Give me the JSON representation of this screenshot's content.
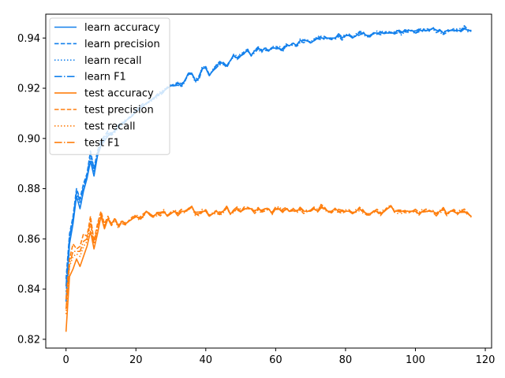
{
  "chart_data": {
    "type": "line",
    "title": "",
    "xlabel": "",
    "ylabel": "",
    "xlim": [
      -5.8,
      121.8
    ],
    "ylim": [
      0.8165,
      0.9495
    ],
    "xticks": [
      0,
      20,
      40,
      60,
      80,
      100,
      120
    ],
    "yticks": [
      0.82,
      0.84,
      0.86,
      0.88,
      0.9,
      0.92,
      0.94
    ],
    "ytick_labels": [
      "0.82",
      "0.84",
      "0.86",
      "0.88",
      "0.90",
      "0.92",
      "0.94"
    ],
    "grid": false,
    "legend_position": "upper-left",
    "colors": {
      "learn": "#1380ec",
      "test": "#ff7f0e"
    },
    "learn_accuracy": [
      [
        0,
        0.835
      ],
      [
        1,
        0.858
      ],
      [
        2,
        0.866
      ],
      [
        3,
        0.877
      ],
      [
        4,
        0.872
      ],
      [
        5,
        0.879
      ],
      [
        6,
        0.884
      ],
      [
        7,
        0.891
      ],
      [
        8,
        0.885
      ],
      [
        9,
        0.893
      ],
      [
        10,
        0.897
      ],
      [
        11,
        0.899
      ],
      [
        12,
        0.901
      ],
      [
        13,
        0.902
      ],
      [
        14,
        0.903
      ],
      [
        15,
        0.905
      ],
      [
        16,
        0.906
      ],
      [
        17,
        0.907
      ],
      [
        18,
        0.908
      ],
      [
        19,
        0.909
      ],
      [
        20,
        0.911
      ],
      [
        21,
        0.912
      ],
      [
        22,
        0.913
      ],
      [
        23,
        0.914
      ],
      [
        24,
        0.915
      ],
      [
        25,
        0.916
      ],
      [
        26,
        0.917
      ],
      [
        27,
        0.918
      ],
      [
        28,
        0.919
      ],
      [
        29,
        0.92
      ],
      [
        30,
        0.921
      ],
      [
        31,
        0.921
      ],
      [
        32,
        0.922
      ],
      [
        33,
        0.921
      ],
      [
        34,
        0.923
      ],
      [
        35,
        0.926
      ],
      [
        36,
        0.926
      ],
      [
        37,
        0.923
      ],
      [
        38,
        0.924
      ],
      [
        39,
        0.928
      ],
      [
        40,
        0.928
      ],
      [
        41,
        0.925
      ],
      [
        42,
        0.927
      ],
      [
        43,
        0.929
      ],
      [
        44,
        0.93
      ],
      [
        45,
        0.93
      ],
      [
        46,
        0.929
      ],
      [
        47,
        0.931
      ],
      [
        48,
        0.933
      ],
      [
        49,
        0.932
      ],
      [
        50,
        0.933
      ],
      [
        51,
        0.934
      ],
      [
        52,
        0.935
      ],
      [
        53,
        0.933
      ],
      [
        54,
        0.935
      ],
      [
        55,
        0.936
      ],
      [
        56,
        0.935
      ],
      [
        57,
        0.936
      ],
      [
        58,
        0.935
      ],
      [
        59,
        0.936
      ],
      [
        60,
        0.936
      ],
      [
        61,
        0.936
      ],
      [
        62,
        0.935
      ],
      [
        63,
        0.937
      ],
      [
        64,
        0.937
      ],
      [
        65,
        0.938
      ],
      [
        66,
        0.937
      ],
      [
        67,
        0.939
      ],
      [
        68,
        0.939
      ],
      [
        69,
        0.939
      ],
      [
        70,
        0.938
      ],
      [
        71,
        0.939
      ],
      [
        72,
        0.94
      ],
      [
        73,
        0.94
      ],
      [
        74,
        0.94
      ],
      [
        75,
        0.94
      ],
      [
        76,
        0.94
      ],
      [
        77,
        0.94
      ],
      [
        78,
        0.941
      ],
      [
        79,
        0.94
      ],
      [
        80,
        0.941
      ],
      [
        81,
        0.941
      ],
      [
        82,
        0.94
      ],
      [
        83,
        0.941
      ],
      [
        84,
        0.942
      ],
      [
        85,
        0.942
      ],
      [
        86,
        0.941
      ],
      [
        87,
        0.941
      ],
      [
        88,
        0.942
      ],
      [
        89,
        0.942
      ],
      [
        90,
        0.942
      ],
      [
        91,
        0.942
      ],
      [
        92,
        0.942
      ],
      [
        93,
        0.942
      ],
      [
        94,
        0.942
      ],
      [
        95,
        0.943
      ],
      [
        96,
        0.942
      ],
      [
        97,
        0.943
      ],
      [
        98,
        0.943
      ],
      [
        99,
        0.943
      ],
      [
        100,
        0.942
      ],
      [
        101,
        0.943
      ],
      [
        102,
        0.943
      ],
      [
        103,
        0.943
      ],
      [
        104,
        0.943
      ],
      [
        105,
        0.944
      ],
      [
        106,
        0.943
      ],
      [
        107,
        0.943
      ],
      [
        108,
        0.942
      ],
      [
        109,
        0.943
      ],
      [
        110,
        0.943
      ],
      [
        111,
        0.943
      ],
      [
        112,
        0.943
      ],
      [
        113,
        0.943
      ],
      [
        114,
        0.944
      ],
      [
        115,
        0.943
      ],
      [
        116,
        0.943
      ]
    ],
    "test_accuracy": [
      [
        0,
        0.823
      ],
      [
        1,
        0.845
      ],
      [
        2,
        0.848
      ],
      [
        3,
        0.852
      ],
      [
        4,
        0.849
      ],
      [
        5,
        0.853
      ],
      [
        6,
        0.857
      ],
      [
        7,
        0.863
      ],
      [
        8,
        0.856
      ],
      [
        9,
        0.862
      ],
      [
        10,
        0.869
      ],
      [
        11,
        0.864
      ],
      [
        12,
        0.868
      ],
      [
        13,
        0.866
      ],
      [
        14,
        0.868
      ],
      [
        15,
        0.865
      ],
      [
        16,
        0.867
      ],
      [
        17,
        0.866
      ],
      [
        18,
        0.867
      ],
      [
        19,
        0.868
      ],
      [
        20,
        0.869
      ],
      [
        21,
        0.868
      ],
      [
        22,
        0.869
      ],
      [
        23,
        0.871
      ],
      [
        24,
        0.87
      ],
      [
        25,
        0.869
      ],
      [
        26,
        0.87
      ],
      [
        27,
        0.87
      ],
      [
        28,
        0.871
      ],
      [
        29,
        0.869
      ],
      [
        30,
        0.87
      ],
      [
        31,
        0.871
      ],
      [
        32,
        0.87
      ],
      [
        33,
        0.871
      ],
      [
        34,
        0.871
      ],
      [
        35,
        0.872
      ],
      [
        36,
        0.873
      ],
      [
        37,
        0.87
      ],
      [
        38,
        0.87
      ],
      [
        39,
        0.871
      ],
      [
        40,
        0.871
      ],
      [
        41,
        0.869
      ],
      [
        42,
        0.87
      ],
      [
        43,
        0.871
      ],
      [
        44,
        0.87
      ],
      [
        45,
        0.871
      ],
      [
        46,
        0.873
      ],
      [
        47,
        0.87
      ],
      [
        48,
        0.871
      ],
      [
        49,
        0.872
      ],
      [
        50,
        0.871
      ],
      [
        51,
        0.872
      ],
      [
        52,
        0.872
      ],
      [
        53,
        0.872
      ],
      [
        54,
        0.871
      ],
      [
        55,
        0.872
      ],
      [
        56,
        0.871
      ],
      [
        57,
        0.872
      ],
      [
        58,
        0.872
      ],
      [
        59,
        0.87
      ],
      [
        60,
        0.872
      ],
      [
        61,
        0.872
      ],
      [
        62,
        0.871
      ],
      [
        63,
        0.872
      ],
      [
        64,
        0.871
      ],
      [
        65,
        0.872
      ],
      [
        66,
        0.871
      ],
      [
        67,
        0.872
      ],
      [
        68,
        0.871
      ],
      [
        69,
        0.871
      ],
      [
        70,
        0.871
      ],
      [
        71,
        0.872
      ],
      [
        72,
        0.871
      ],
      [
        73,
        0.873
      ],
      [
        74,
        0.872
      ],
      [
        75,
        0.871
      ],
      [
        76,
        0.871
      ],
      [
        77,
        0.872
      ],
      [
        78,
        0.871
      ],
      [
        79,
        0.871
      ],
      [
        80,
        0.871
      ],
      [
        81,
        0.871
      ],
      [
        82,
        0.87
      ],
      [
        83,
        0.871
      ],
      [
        84,
        0.872
      ],
      [
        85,
        0.871
      ],
      [
        86,
        0.87
      ],
      [
        87,
        0.87
      ],
      [
        88,
        0.871
      ],
      [
        89,
        0.871
      ],
      [
        90,
        0.87
      ],
      [
        91,
        0.871
      ],
      [
        92,
        0.872
      ],
      [
        93,
        0.873
      ],
      [
        94,
        0.871
      ],
      [
        95,
        0.871
      ],
      [
        96,
        0.871
      ],
      [
        97,
        0.871
      ],
      [
        98,
        0.871
      ],
      [
        99,
        0.871
      ],
      [
        100,
        0.871
      ],
      [
        101,
        0.87
      ],
      [
        102,
        0.871
      ],
      [
        103,
        0.871
      ],
      [
        104,
        0.871
      ],
      [
        105,
        0.871
      ],
      [
        106,
        0.87
      ],
      [
        107,
        0.871
      ],
      [
        108,
        0.872
      ],
      [
        109,
        0.87
      ],
      [
        110,
        0.871
      ],
      [
        111,
        0.871
      ],
      [
        112,
        0.87
      ],
      [
        113,
        0.871
      ],
      [
        114,
        0.871
      ],
      [
        115,
        0.87
      ],
      [
        116,
        0.869
      ]
    ],
    "learn_precision_early": [
      [
        0,
        0.844
      ],
      [
        1,
        0.862
      ],
      [
        2,
        0.869
      ],
      [
        3,
        0.88
      ],
      [
        4,
        0.876
      ],
      [
        5,
        0.882
      ],
      [
        6,
        0.886
      ],
      [
        7,
        0.895
      ],
      [
        8,
        0.888
      ],
      [
        9,
        0.895
      ],
      [
        10,
        0.899
      ],
      [
        11,
        0.901
      ],
      [
        12,
        0.903
      ]
    ],
    "learn_recall_early": [
      [
        0,
        0.839
      ],
      [
        1,
        0.86
      ],
      [
        2,
        0.867
      ],
      [
        3,
        0.878
      ],
      [
        4,
        0.874
      ],
      [
        5,
        0.88
      ],
      [
        6,
        0.885
      ],
      [
        7,
        0.893
      ],
      [
        8,
        0.887
      ],
      [
        9,
        0.894
      ],
      [
        10,
        0.898
      ],
      [
        11,
        0.9
      ],
      [
        12,
        0.902
      ]
    ],
    "learn_f1_early": [
      [
        0,
        0.841
      ],
      [
        1,
        0.861
      ],
      [
        2,
        0.868
      ],
      [
        3,
        0.879
      ],
      [
        4,
        0.875
      ],
      [
        5,
        0.881
      ],
      [
        6,
        0.885
      ],
      [
        7,
        0.894
      ],
      [
        8,
        0.887
      ],
      [
        9,
        0.894
      ],
      [
        10,
        0.898
      ],
      [
        11,
        0.9
      ],
      [
        12,
        0.902
      ]
    ],
    "test_precision_early": [
      [
        0,
        0.836
      ],
      [
        1,
        0.852
      ],
      [
        2,
        0.858
      ],
      [
        3,
        0.856
      ],
      [
        4,
        0.857
      ],
      [
        5,
        0.862
      ],
      [
        6,
        0.861
      ],
      [
        7,
        0.869
      ],
      [
        8,
        0.859
      ],
      [
        9,
        0.866
      ],
      [
        10,
        0.871
      ],
      [
        11,
        0.866
      ],
      [
        12,
        0.869
      ]
    ],
    "test_recall_early": [
      [
        0,
        0.83
      ],
      [
        1,
        0.849
      ],
      [
        2,
        0.853
      ],
      [
        3,
        0.854
      ],
      [
        4,
        0.853
      ],
      [
        5,
        0.857
      ],
      [
        6,
        0.859
      ],
      [
        7,
        0.866
      ],
      [
        8,
        0.858
      ],
      [
        9,
        0.864
      ],
      [
        10,
        0.87
      ],
      [
        11,
        0.865
      ],
      [
        12,
        0.868
      ]
    ],
    "test_f1_early": [
      [
        0,
        0.832
      ],
      [
        1,
        0.85
      ],
      [
        2,
        0.855
      ],
      [
        3,
        0.855
      ],
      [
        4,
        0.855
      ],
      [
        5,
        0.859
      ],
      [
        6,
        0.86
      ],
      [
        7,
        0.867
      ],
      [
        8,
        0.858
      ],
      [
        9,
        0.865
      ],
      [
        10,
        0.87
      ],
      [
        11,
        0.865
      ],
      [
        12,
        0.868
      ]
    ],
    "series": [
      {
        "name": "learn accuracy",
        "group": "learn",
        "base": "learn_accuracy",
        "variant": 0,
        "early": null,
        "dash": "solid"
      },
      {
        "name": "learn precision",
        "group": "learn",
        "base": "learn_accuracy",
        "variant": 1,
        "early": "learn_precision_early",
        "dash": "dashed"
      },
      {
        "name": "learn recall",
        "group": "learn",
        "base": "learn_accuracy",
        "variant": 2,
        "early": "learn_recall_early",
        "dash": "dotted"
      },
      {
        "name": "learn F1",
        "group": "learn",
        "base": "learn_accuracy",
        "variant": 3,
        "early": "learn_f1_early",
        "dash": "dashdot"
      },
      {
        "name": "test accuracy",
        "group": "test",
        "base": "test_accuracy",
        "variant": 0,
        "early": null,
        "dash": "solid"
      },
      {
        "name": "test precision",
        "group": "test",
        "base": "test_accuracy",
        "variant": 1,
        "early": "test_precision_early",
        "dash": "dashed"
      },
      {
        "name": "test recall",
        "group": "test",
        "base": "test_accuracy",
        "variant": 2,
        "early": "test_recall_early",
        "dash": "dotted"
      },
      {
        "name": "test F1",
        "group": "test",
        "base": "test_accuracy",
        "variant": 3,
        "early": "test_f1_early",
        "dash": "dashdot"
      }
    ]
  }
}
